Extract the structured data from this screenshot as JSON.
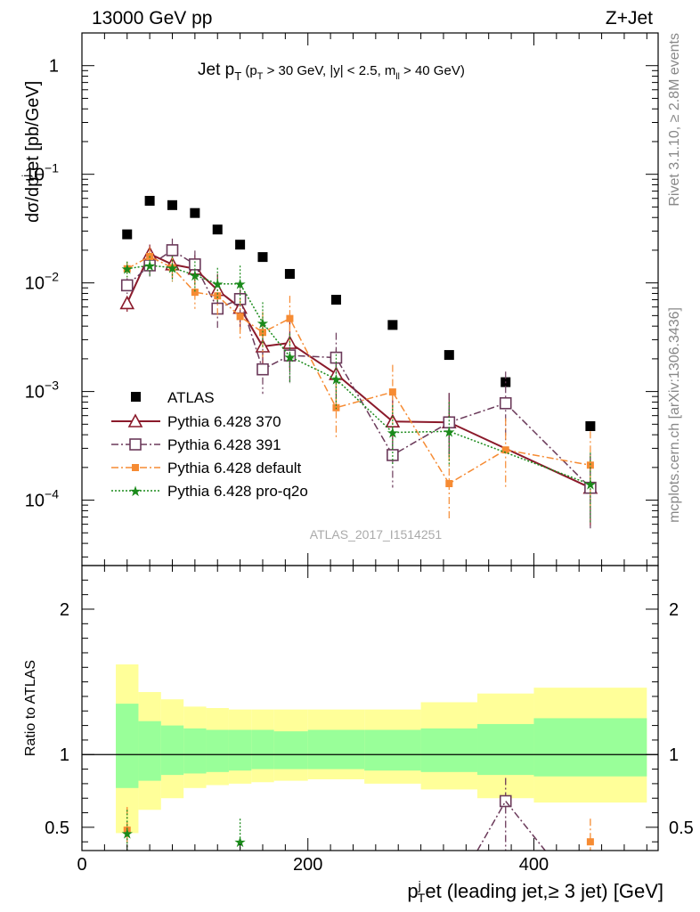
{
  "header": {
    "left": "13000 GeV pp",
    "right": "Z+Jet"
  },
  "side_labels": {
    "rivet": "Rivet 3.1.10, ≥ 2.8M events",
    "mcplots": "mcplots.cern.ch [arXiv:1306.3436]"
  },
  "watermark": "ATLAS_2017_I1514251",
  "chart_data": [
    {
      "type": "scatter",
      "title_parts": {
        "main": "Jet p",
        "main_sub": "T",
        "cond_open": " (p",
        "cond_sub1": "T",
        "cond_mid": " > 30 GeV, |y| < 2.5, m",
        "cond_sub2": "ll",
        "cond_close": " > 40 GeV)"
      },
      "ylabel_parts": {
        "a": "dσ/dp",
        "b": "j",
        "c": "T",
        "d": "et [pb/GeV]"
      },
      "yscale": "log",
      "ylim": [
        2.5e-05,
        2.0
      ],
      "xlim": [
        0,
        510
      ],
      "y_ticks": [
        {
          "v": 1,
          "base": "1",
          "exp": ""
        },
        {
          "v": 0.1,
          "base": "10",
          "exp": "−1"
        },
        {
          "v": 0.01,
          "base": "10",
          "exp": "−2"
        },
        {
          "v": 0.001,
          "base": "10",
          "exp": "−3"
        },
        {
          "v": 0.0001,
          "base": "10",
          "exp": "−4"
        }
      ],
      "legend_position": "lower-left",
      "series": [
        {
          "name": "ATLAS",
          "color": "#000000",
          "marker": "square-filled",
          "line": "none",
          "x": [
            40,
            60,
            80,
            100,
            120,
            140,
            160,
            184,
            225,
            275,
            325,
            375,
            450
          ],
          "y": [
            0.028,
            0.057,
            0.052,
            0.044,
            0.031,
            0.0225,
            0.0173,
            0.0121,
            0.007,
            0.0041,
            0.00217,
            0.00122,
            0.00048
          ]
        },
        {
          "name": "Pythia 6.428 370",
          "color": "#8b1a2b",
          "marker": "triangle-open",
          "line": "solid",
          "x": [
            40,
            60,
            80,
            100,
            120,
            140,
            160,
            184,
            225,
            275,
            325,
            450
          ],
          "y": [
            0.0065,
            0.0185,
            0.0148,
            0.0135,
            0.0086,
            0.0059,
            0.0026,
            0.0028,
            0.00145,
            0.00053,
            0.00052,
            0.00013
          ]
        },
        {
          "name": "Pythia 6.428 391",
          "color": "#6b3a5a",
          "marker": "square-open",
          "line": "dashdot",
          "x": [
            40,
            60,
            80,
            100,
            120,
            140,
            160,
            184,
            225,
            275,
            325,
            375,
            450
          ],
          "y": [
            0.0095,
            0.0145,
            0.02,
            0.0148,
            0.0058,
            0.0071,
            0.0016,
            0.00215,
            0.00205,
            0.00026,
            0.00052,
            0.00078,
            0.00013
          ]
        },
        {
          "name": "Pythia 6.428 default",
          "color": "#f68b33",
          "marker": "square-filled",
          "line": "dashdot",
          "x": [
            40,
            60,
            80,
            100,
            120,
            140,
            160,
            184,
            225,
            275,
            325,
            375,
            450
          ],
          "y": [
            0.0135,
            0.0175,
            0.0138,
            0.0082,
            0.0076,
            0.0049,
            0.0035,
            0.0047,
            0.00071,
            0.00099,
            0.000142,
            0.00029,
            0.00021
          ]
        },
        {
          "name": "Pythia 6.428 pro-q2o",
          "color": "#1a8a1a",
          "marker": "star",
          "line": "dotted",
          "x": [
            40,
            60,
            80,
            100,
            120,
            140,
            160,
            184,
            225,
            275,
            325,
            450
          ],
          "y": [
            0.0135,
            0.0145,
            0.0138,
            0.0118,
            0.0098,
            0.0098,
            0.0043,
            0.0021,
            0.0013,
            0.00042,
            0.00043,
            0.00014
          ]
        }
      ]
    },
    {
      "type": "area",
      "ylabel": "Ratio to ATLAS",
      "xlabel_parts": {
        "a": "p",
        "b": "j",
        "c": "T",
        "d": "et (leading jet,≥ 3 jet) [GeV]"
      },
      "xlim": [
        0,
        510
      ],
      "ylim": [
        0.34,
        2.3
      ],
      "x_ticks": [
        "0",
        "200",
        "400"
      ],
      "y_ticks": [
        "0.5",
        "1",
        "2"
      ],
      "bins": [
        30,
        50,
        70,
        90,
        110,
        130,
        150,
        170,
        200,
        250,
        300,
        350,
        400,
        500
      ],
      "band_yellow": [
        [
          0.46,
          1.62
        ],
        [
          0.62,
          1.43
        ],
        [
          0.7,
          1.38
        ],
        [
          0.77,
          1.33
        ],
        [
          0.79,
          1.32
        ],
        [
          0.8,
          1.31
        ],
        [
          0.81,
          1.31
        ],
        [
          0.82,
          1.31
        ],
        [
          0.83,
          1.31
        ],
        [
          0.8,
          1.31
        ],
        [
          0.76,
          1.36
        ],
        [
          0.7,
          1.42
        ],
        [
          0.67,
          1.46
        ]
      ],
      "band_green": [
        [
          0.77,
          1.35
        ],
        [
          0.82,
          1.23
        ],
        [
          0.86,
          1.2
        ],
        [
          0.87,
          1.18
        ],
        [
          0.88,
          1.17
        ],
        [
          0.89,
          1.17
        ],
        [
          0.9,
          1.17
        ],
        [
          0.9,
          1.16
        ],
        [
          0.9,
          1.17
        ],
        [
          0.89,
          1.17
        ],
        [
          0.88,
          1.18
        ],
        [
          0.86,
          1.21
        ],
        [
          0.85,
          1.25
        ]
      ],
      "ratio_points": [
        {
          "series": "Pythia 6.428 default",
          "x": 40,
          "y": 0.48
        },
        {
          "series": "Pythia 6.428 pro-q2o",
          "x": 40,
          "y": 0.46
        },
        {
          "series": "Pythia 6.428 pro-q2o",
          "x": 140,
          "y": 0.4
        },
        {
          "series": "Pythia 6.428 391",
          "x": 375,
          "y": 0.68
        },
        {
          "series": "Pythia 6.428 default",
          "x": 450,
          "y": 0.4
        }
      ]
    }
  ]
}
